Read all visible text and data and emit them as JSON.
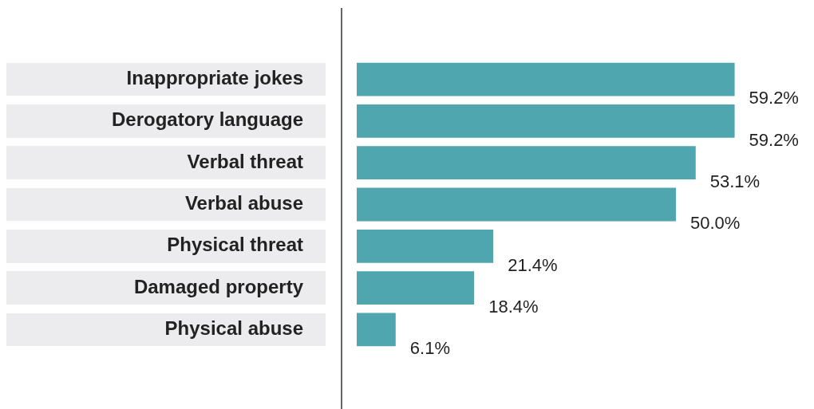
{
  "chart_data": {
    "type": "bar",
    "orientation": "horizontal",
    "categories": [
      "Inappropriate jokes",
      "Derogatory language",
      "Verbal threat",
      "Verbal abuse",
      "Physical threat",
      "Damaged property",
      "Physical abuse"
    ],
    "values": [
      59.2,
      59.2,
      53.1,
      50.0,
      21.4,
      18.4,
      6.1
    ],
    "value_labels": [
      "59.2%",
      "59.2%",
      "53.1%",
      "50.0%",
      "21.4%",
      "18.4%",
      "6.1%"
    ],
    "color": "#4fa6ae",
    "grid": false,
    "legend": false
  }
}
